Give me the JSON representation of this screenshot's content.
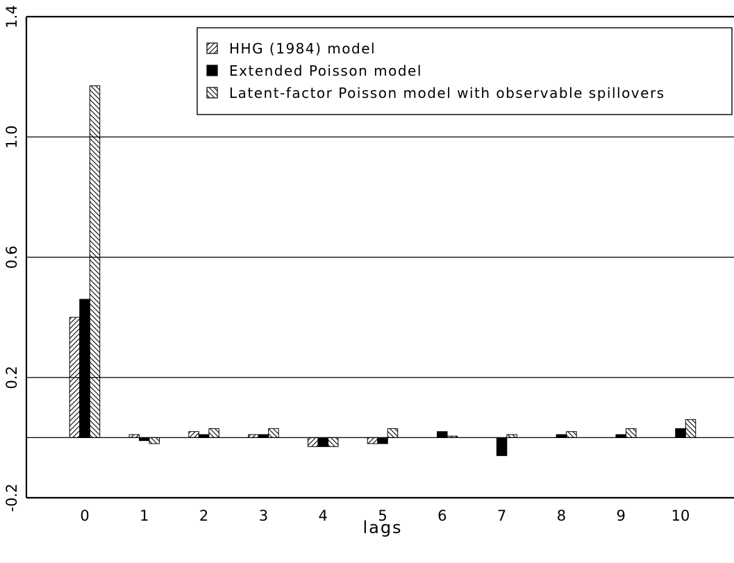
{
  "chart_data": {
    "type": "bar",
    "xlabel": "lags",
    "ylabel": "",
    "categories": [
      "0",
      "1",
      "2",
      "3",
      "4",
      "5",
      "6",
      "7",
      "8",
      "9",
      "10"
    ],
    "ylim": [
      -0.2,
      1.4
    ],
    "yticks": [
      -0.2,
      0.2,
      0.6,
      1.0,
      1.4
    ],
    "ytick_labels": [
      "-0.2",
      "0.2",
      "0.6",
      "1.0",
      "1.4"
    ],
    "gridlines": [
      0.0,
      0.2,
      0.6,
      1.0
    ],
    "grid": true,
    "legend_position": "top-right",
    "series": [
      {
        "name": "HHG (1984) model",
        "pattern": "hatch-forward",
        "values": [
          0.4,
          0.01,
          0.02,
          0.01,
          -0.03,
          -0.02,
          0.0,
          0.0,
          0.0,
          0.0,
          0.0
        ]
      },
      {
        "name": "Extended Poisson model",
        "pattern": "solid",
        "values": [
          0.46,
          -0.01,
          0.01,
          0.01,
          -0.03,
          -0.02,
          0.02,
          -0.06,
          0.01,
          0.01,
          0.03
        ]
      },
      {
        "name": "Latent-factor Poisson model with observable spillovers",
        "pattern": "hatch-back",
        "values": [
          1.17,
          -0.02,
          0.03,
          0.03,
          -0.03,
          0.03,
          0.005,
          0.01,
          0.02,
          0.03,
          0.06
        ]
      }
    ],
    "colors": {
      "line": "#000000",
      "fill": "#000000",
      "background": "#ffffff"
    }
  }
}
